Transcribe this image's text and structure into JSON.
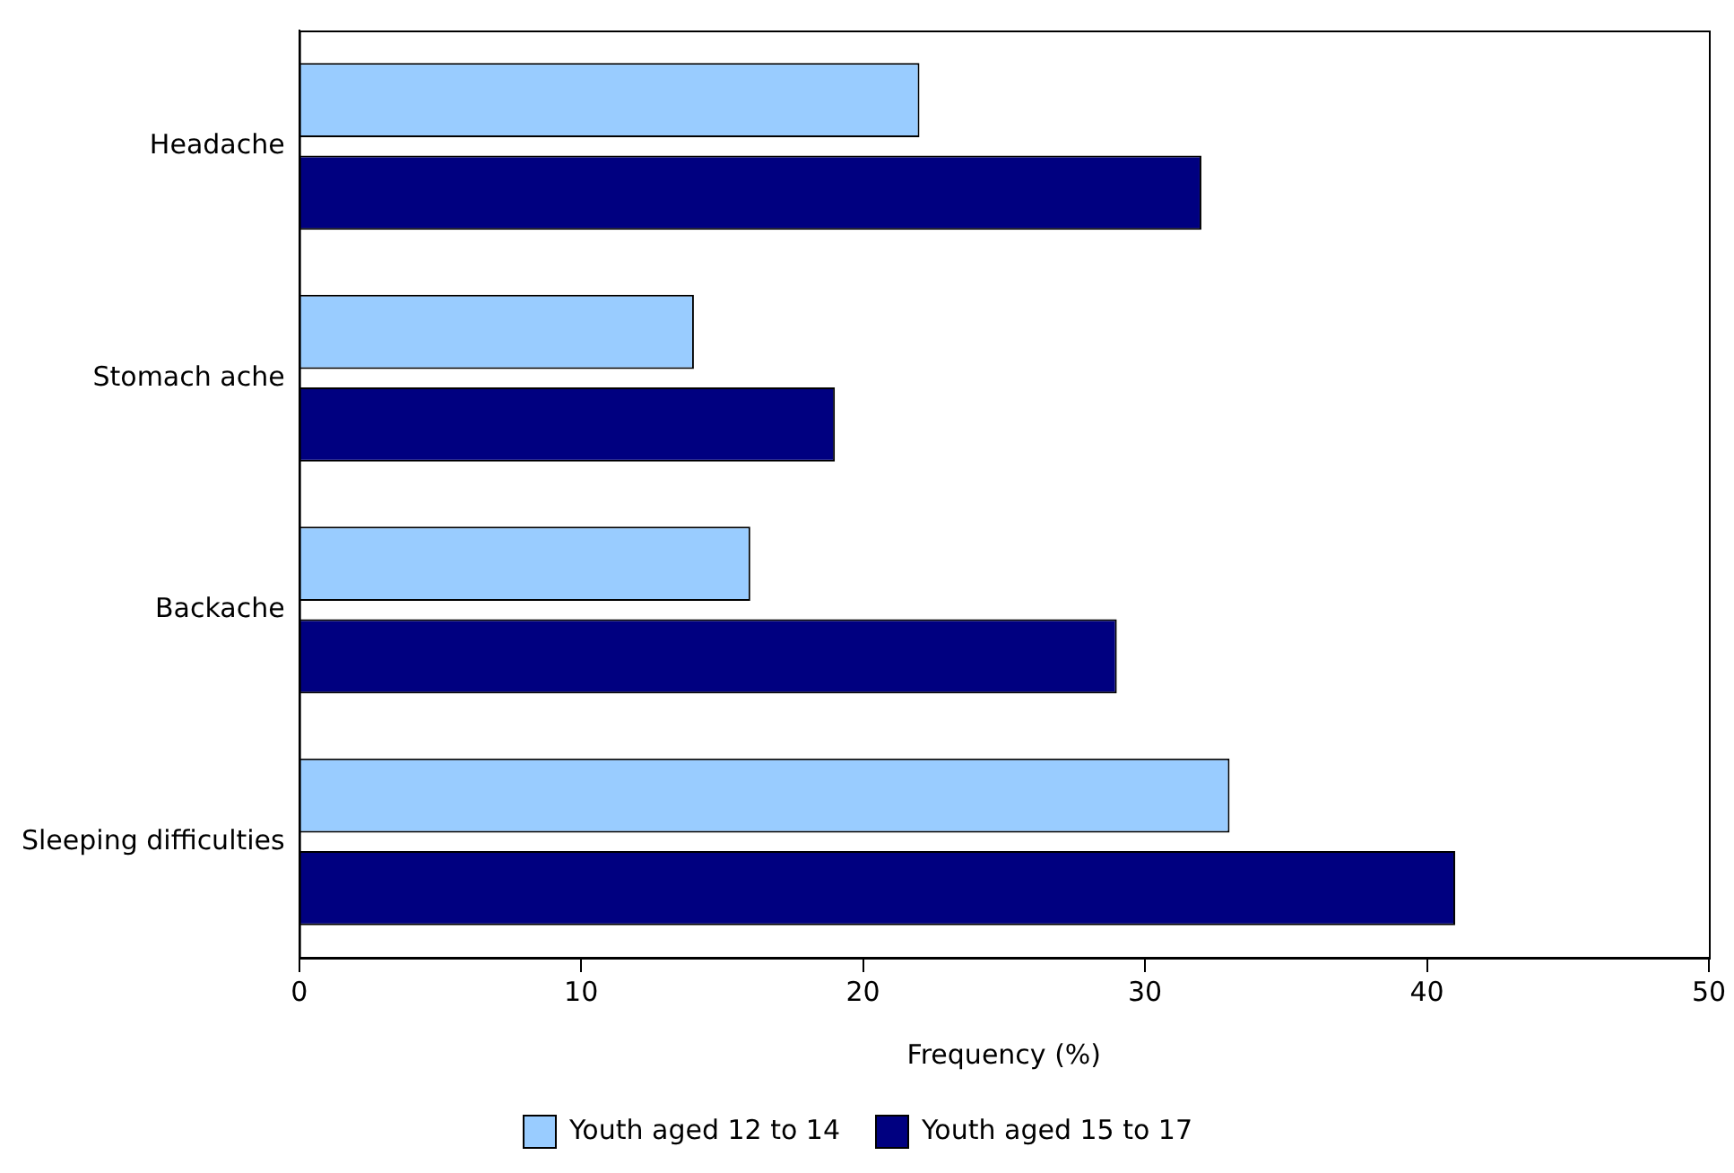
{
  "chart_data": {
    "type": "bar",
    "orientation": "horizontal",
    "xlabel": "Frequency (%)",
    "categories": [
      "Headache",
      "Stomach ache",
      "Backache",
      "Sleeping difficulties"
    ],
    "series": [
      {
        "name": "Youth aged 12 to 14",
        "color": "#99ccff",
        "values": [
          22,
          14,
          16,
          33
        ]
      },
      {
        "name": "Youth aged 15 to 17",
        "color": "#000080",
        "values": [
          32,
          19,
          29,
          41
        ]
      }
    ],
    "xlim": [
      0,
      50
    ],
    "xticks": [
      0,
      10,
      20,
      30,
      40,
      50
    ],
    "grid": false,
    "legend": "bottom"
  }
}
